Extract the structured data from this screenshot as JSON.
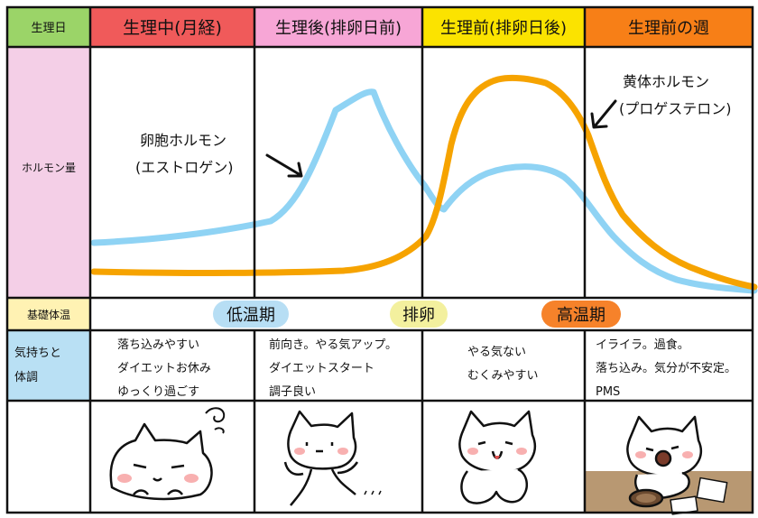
{
  "row_labels": {
    "period_day": "生理日",
    "hormone_level": "ホルモン量",
    "basal_temperature": "基礎体温",
    "mood_condition_line1": "気持ちと",
    "mood_condition_line2": "体調"
  },
  "phases": [
    {
      "label": "生理中(月経)",
      "color": "#f05a5a"
    },
    {
      "label": "生理後(排卵日前)",
      "color": "#f7a6d6"
    },
    {
      "label": "生理前(排卵日後)",
      "color": "#fbe300"
    },
    {
      "label": "生理前の週",
      "color": "#f77f17"
    }
  ],
  "hormones": {
    "estrogen": {
      "name": "卵胞ホルモン",
      "sub": "(エストロゲン)",
      "color": "#8fd3f4"
    },
    "progesterone": {
      "name": "黄体ホルモン",
      "sub": "(プロゲステロン)",
      "color": "#f6a300"
    }
  },
  "temperature": {
    "low": {
      "label": "低温期",
      "color": "#b7def4"
    },
    "ovulation": {
      "label": "排卵",
      "color": "#f3f09e"
    },
    "high": {
      "label": "高温期",
      "color": "#f6822a"
    }
  },
  "mood": [
    {
      "lines": [
        "落ち込みやすい",
        "ダイエットお休み",
        "ゆっくり過ごす"
      ]
    },
    {
      "lines": [
        "前向き。やる気アップ。",
        "ダイエットスタート",
        "調子良い"
      ]
    },
    {
      "lines": [
        "やる気ない",
        "むくみやすい"
      ]
    },
    {
      "lines": [
        "イライラ。過食。",
        "落ち込み。気分が不安定。",
        "PMS"
      ]
    }
  ],
  "colors": {
    "label_col_header": "#9bd468",
    "label_col_hormone": "#f4cfe7",
    "label_col_temp": "#fff2b3",
    "label_col_mood": "#b9e0f4",
    "grid": "#111111"
  },
  "icons": {
    "row5_col1": "cat-resting-icon",
    "row5_col2": "cat-running-icon",
    "row5_col3": "cat-sitting-icon",
    "row5_col4": "cat-eating-icon"
  }
}
